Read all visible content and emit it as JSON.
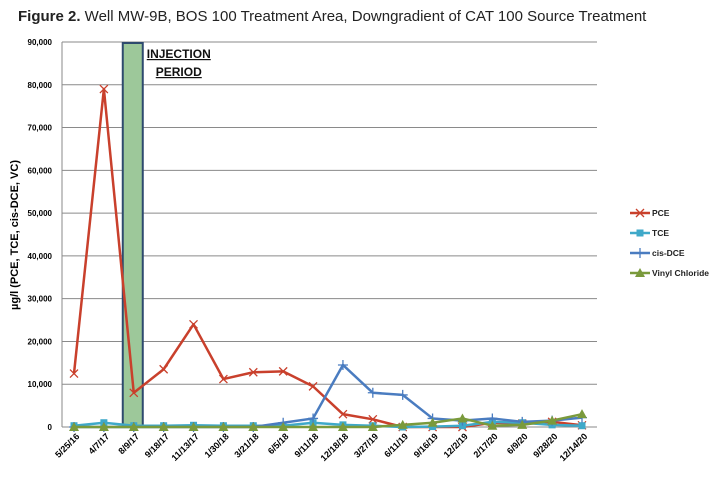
{
  "title": {
    "prefix": "Figure 2.",
    "text": " Well MW-9B, BOS 100 Treatment Area, Downgradient of CAT 100 Source Treatment"
  },
  "chart_data": {
    "type": "line",
    "ylabel": "µg/l (PCE, TCE, cis-DCE, VC)",
    "ylim": [
      0,
      90000
    ],
    "yticks": [
      0,
      10000,
      20000,
      30000,
      40000,
      50000,
      60000,
      70000,
      80000,
      90000
    ],
    "ytick_labels": [
      "0",
      "10,000",
      "20,000",
      "30,000",
      "40,000",
      "50,000",
      "60,000",
      "70,000",
      "80,000",
      "90,000"
    ],
    "grid": true,
    "legend": "right",
    "categories": [
      "5/25/16",
      "4/7/17",
      "8/9/17",
      "9/18/17",
      "11/13/17",
      "1/30/18",
      "3/21/18",
      "6/5/18",
      "9/11/18",
      "12/18/18",
      "3/27/19",
      "6/11/19",
      "9/16/19",
      "12/2/19",
      "2/17/20",
      "6/9/20",
      "9/28/20",
      "12/14/20"
    ],
    "annotation": {
      "text_line1": "INJECTION",
      "text_line2": "PERIOD",
      "category": "8/9/17",
      "color": "#9dc89a",
      "border": "#2e4a6e"
    },
    "series": [
      {
        "name": "PCE",
        "color": "#c9402c",
        "marker": "x",
        "values": [
          12500,
          79000,
          8000,
          13500,
          24000,
          11200,
          12800,
          13000,
          9500,
          3000,
          1800,
          0,
          0,
          0,
          1000,
          800,
          1200,
          400
        ]
      },
      {
        "name": "TCE",
        "color": "#3fa9c9",
        "marker": "square",
        "values": [
          300,
          1000,
          300,
          300,
          400,
          300,
          300,
          300,
          1000,
          500,
          300,
          0,
          100,
          300,
          1200,
          1000,
          500,
          300
        ]
      },
      {
        "name": "cis-DCE",
        "color": "#4a7cc0",
        "marker": "plus",
        "values": [
          0,
          0,
          0,
          0,
          0,
          0,
          0,
          1000,
          2000,
          14500,
          8000,
          7500,
          2000,
          1500,
          2000,
          1200,
          1500,
          2200
        ]
      },
      {
        "name": "Vinyl Chloride",
        "color": "#7a9a3c",
        "marker": "triangle",
        "values": [
          0,
          0,
          0,
          0,
          0,
          0,
          0,
          0,
          0,
          0,
          0,
          500,
          1000,
          2000,
          300,
          500,
          1500,
          3000
        ]
      }
    ]
  }
}
